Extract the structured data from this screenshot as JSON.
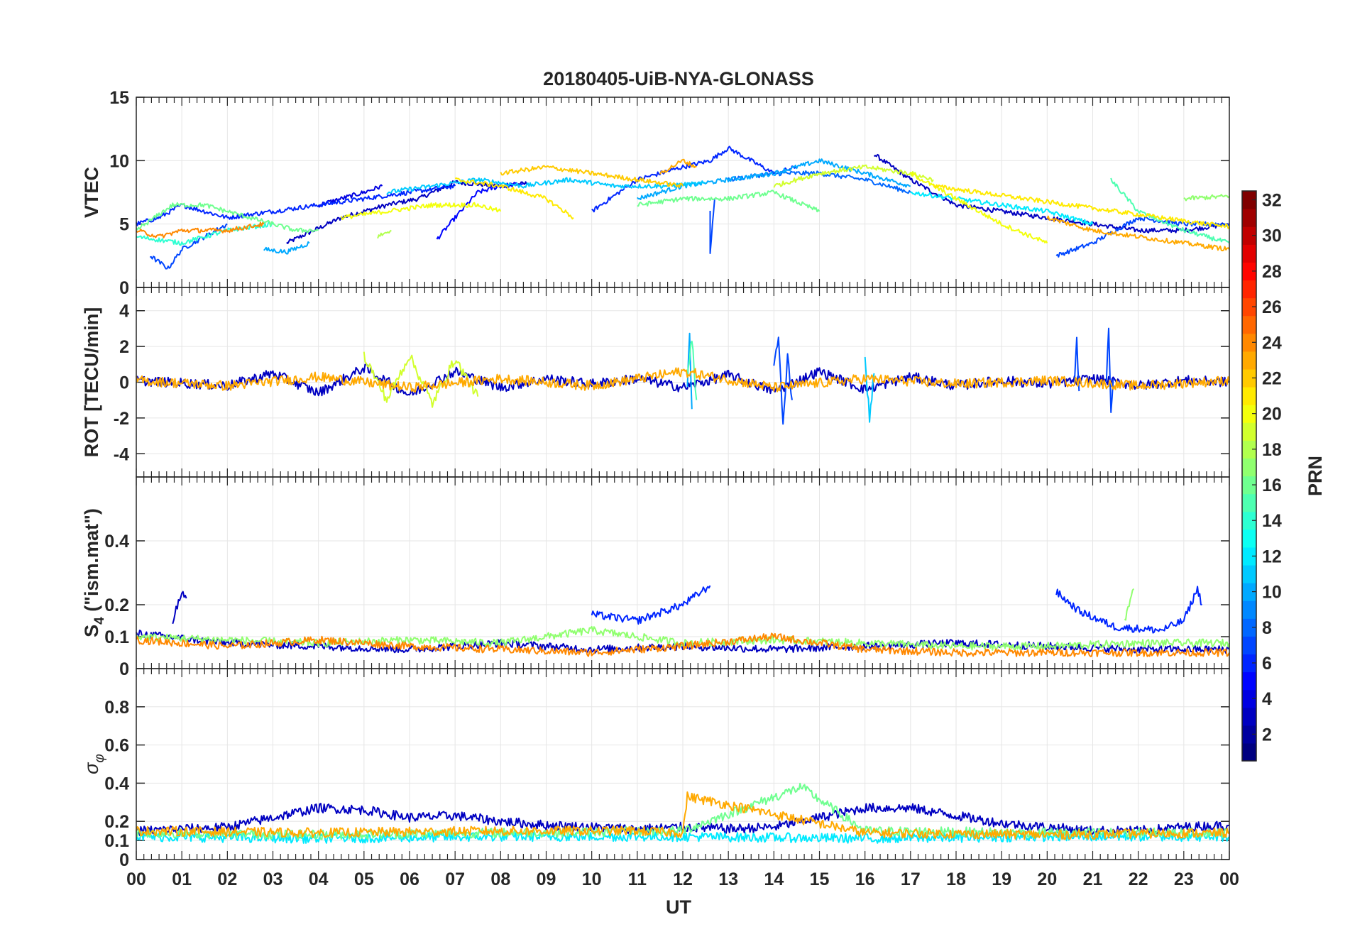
{
  "chart_data": {
    "type": "line",
    "title": "20180405-UiB-NYA-GLONASS",
    "xlabel": "UT",
    "x_unit": "hours UT",
    "xlim": [
      0,
      24
    ],
    "x_tick_labels": [
      "00",
      "01",
      "02",
      "03",
      "04",
      "05",
      "06",
      "07",
      "08",
      "09",
      "10",
      "11",
      "12",
      "13",
      "14",
      "15",
      "16",
      "17",
      "18",
      "19",
      "20",
      "21",
      "22",
      "23",
      "00"
    ],
    "grid": true,
    "colorbar": {
      "label": "PRN",
      "colormap": "jet",
      "range": [
        1,
        32
      ],
      "levels": 32,
      "tick_labels": [
        "2",
        "4",
        "6",
        "8",
        "10",
        "12",
        "14",
        "16",
        "18",
        "20",
        "22",
        "24",
        "26",
        "28",
        "30",
        "32"
      ]
    },
    "panels": [
      {
        "ylabel": "VTEC",
        "ylim": [
          0,
          15
        ],
        "y_tick_labels": [
          "0",
          "5",
          "10",
          "15"
        ],
        "series": [
          {
            "prn": 3,
            "x": [
              3.3,
              4.5,
              5.5,
              6.2,
              7.0,
              8.0,
              8.6
            ],
            "y": [
              3.5,
              5.5,
              6.5,
              7.0,
              8.3,
              8.0,
              8.2
            ]
          },
          {
            "prn": 3,
            "x": [
              16.2,
              17.0,
              18.0,
              19.0,
              20.0,
              21.0,
              22.0,
              23.0,
              24.0
            ],
            "y": [
              10.5,
              8.5,
              6.5,
              6.0,
              5.5,
              5.0,
              4.5,
              4.5,
              5.0
            ]
          },
          {
            "prn": 4,
            "x": [
              4.0,
              5.0,
              5.4
            ],
            "y": [
              6.5,
              7.5,
              8.0
            ]
          },
          {
            "prn": 5,
            "x": [
              6.6,
              7.0,
              7.5,
              8.0,
              8.5
            ],
            "y": [
              3.8,
              5.5,
              7.5,
              8.0,
              8.2
            ]
          },
          {
            "prn": 6,
            "x": [
              0.0,
              0.5,
              1.0,
              2.0,
              3.0,
              4.0,
              5.0,
              6.0,
              7.0
            ],
            "y": [
              5.0,
              5.5,
              6.5,
              5.5,
              6.0,
              6.5,
              7.0,
              7.5,
              8.0
            ]
          },
          {
            "prn": 6,
            "x": [
              10.0,
              11.0,
              12.0,
              12.6,
              13.0,
              14.0,
              14.5
            ],
            "y": [
              6.0,
              8.5,
              9.5,
              10.0,
              11.0,
              9.0,
              9.5
            ]
          },
          {
            "prn": 7,
            "x": [
              0.3,
              0.7,
              1.0,
              2.0
            ],
            "y": [
              2.5,
              1.5,
              3.0,
              5.0
            ]
          },
          {
            "prn": 7,
            "x": [
              20.2,
              21.0,
              22.0,
              23.0,
              24.0
            ],
            "y": [
              2.5,
              3.5,
              5.5,
              5.0,
              5.0
            ]
          },
          {
            "prn": 7,
            "x": [
              12.6,
              12.6,
              12.7
            ],
            "y": [
              6.0,
              2.8,
              7.0
            ]
          },
          {
            "prn": 8,
            "x": [
              13.0,
              14.0,
              15.0,
              16.0,
              17.0
            ],
            "y": [
              8.5,
              9.0,
              9.0,
              8.5,
              7.5
            ]
          },
          {
            "prn": 10,
            "x": [
              2.8,
              3.3,
              3.8
            ],
            "y": [
              3.0,
              2.8,
              3.5
            ]
          },
          {
            "prn": 10,
            "x": [
              11.0,
              12.0,
              13.0,
              14.0,
              15.0,
              16.0,
              17.0
            ],
            "y": [
              7.0,
              8.0,
              8.5,
              9.0,
              10.0,
              9.0,
              8.0
            ]
          },
          {
            "prn": 11,
            "x": [
              5.5,
              6.5,
              7.5,
              8.5,
              9.5,
              10.5,
              11.5,
              12.5
            ],
            "y": [
              7.5,
              8.0,
              8.5,
              8.0,
              8.5,
              8.0,
              8.0,
              8.2
            ]
          },
          {
            "prn": 12,
            "x": [
              17.0,
              18.0,
              19.0,
              20.0,
              21.0
            ],
            "y": [
              7.5,
              7.0,
              6.5,
              6.0,
              5.0
            ]
          },
          {
            "prn": 14,
            "x": [
              0.0,
              1.0,
              2.0,
              3.0
            ],
            "y": [
              4.0,
              3.5,
              4.5,
              5.0
            ]
          },
          {
            "prn": 15,
            "x": [
              21.4,
              22.0,
              23.0,
              24.0
            ],
            "y": [
              8.5,
              6.0,
              4.5,
              3.5
            ]
          },
          {
            "prn": 16,
            "x": [
              0.0,
              0.8,
              1.5,
              2.5,
              3.5,
              4.0
            ],
            "y": [
              4.5,
              6.5,
              6.5,
              5.5,
              4.5,
              4.5
            ]
          },
          {
            "prn": 16,
            "x": [
              11.0,
              12.0,
              13.0,
              14.0,
              15.0
            ],
            "y": [
              6.5,
              7.0,
              7.0,
              7.5,
              6.0
            ]
          },
          {
            "prn": 17,
            "x": [
              23.0,
              24.0
            ],
            "y": [
              7.0,
              7.2
            ]
          },
          {
            "prn": 18,
            "x": [
              5.3,
              5.6
            ],
            "y": [
              4.0,
              4.5
            ]
          },
          {
            "prn": 19,
            "x": [
              14.0,
              15.0,
              16.0,
              17.0,
              17.5
            ],
            "y": [
              8.0,
              9.0,
              9.5,
              9.0,
              8.5
            ]
          },
          {
            "prn": 20,
            "x": [
              4.5,
              5.5,
              6.5,
              7.5,
              8.0
            ],
            "y": [
              5.5,
              6.0,
              6.5,
              6.5,
              6.0
            ]
          },
          {
            "prn": 20,
            "x": [
              17.0,
              18.0,
              19.0,
              20.0
            ],
            "y": [
              9.0,
              7.0,
              5.0,
              3.5
            ]
          },
          {
            "prn": 21,
            "x": [
              7.0,
              8.0,
              9.0,
              9.6
            ],
            "y": [
              8.5,
              8.0,
              7.0,
              5.5
            ]
          },
          {
            "prn": 21,
            "x": [
              17.5,
              18.5,
              19.5,
              20.5,
              21.5,
              22.5,
              23.5,
              24.0
            ],
            "y": [
              8.0,
              7.5,
              7.0,
              6.5,
              6.0,
              5.5,
              5.0,
              4.8
            ]
          },
          {
            "prn": 22,
            "x": [
              8.0,
              9.0,
              10.0,
              11.0,
              12.0
            ],
            "y": [
              9.0,
              9.5,
              9.0,
              8.5,
              8.0
            ]
          },
          {
            "prn": 23,
            "x": [
              11.5,
              12.0,
              12.3
            ],
            "y": [
              9.0,
              10.0,
              9.5
            ]
          },
          {
            "prn": 23,
            "x": [
              20.0,
              21.0,
              22.0,
              23.0,
              24.0
            ],
            "y": [
              5.5,
              4.5,
              4.0,
              3.5,
              3.0
            ]
          },
          {
            "prn": 24,
            "x": [
              0.0,
              0.5,
              1.0,
              2.0,
              2.8
            ],
            "y": [
              4.5,
              4.0,
              4.5,
              4.5,
              5.0
            ]
          }
        ]
      },
      {
        "ylabel": "ROT [TECU/min]",
        "ylim": [
          -5.3,
          5.3
        ],
        "y_tick_labels": [
          "-4",
          "-2",
          "0",
          "2",
          "4"
        ],
        "series": [
          {
            "prn": 3,
            "x": [
              0,
              2,
              3,
              4,
              5,
              6,
              7,
              8,
              9,
              10,
              11,
              12,
              13,
              14,
              15,
              16,
              17,
              18,
              19,
              20,
              21,
              22,
              23,
              24
            ],
            "y": [
              0.1,
              -0.2,
              0.5,
              -0.6,
              0.8,
              -0.7,
              0.6,
              -0.3,
              0.2,
              -0.1,
              0.2,
              -0.3,
              0.4,
              -0.5,
              0.6,
              -0.4,
              0.3,
              -0.2,
              0.1,
              -0.1,
              0.2,
              -0.2,
              0.1,
              0.0
            ]
          },
          {
            "prn": 7,
            "x": [
              14.0,
              14.1,
              14.2,
              14.3,
              14.4
            ],
            "y": [
              1.0,
              2.5,
              -2.5,
              1.5,
              -1.0
            ]
          },
          {
            "prn": 7,
            "x": [
              20.6,
              20.65,
              20.7
            ],
            "y": [
              0.0,
              2.6,
              -0.5
            ]
          },
          {
            "prn": 7,
            "x": [
              21.3,
              21.35,
              21.4,
              21.45
            ],
            "y": [
              0.0,
              2.8,
              -1.5,
              0.2
            ]
          },
          {
            "prn": 10,
            "x": [
              12.1,
              12.15,
              12.2
            ],
            "y": [
              0.0,
              2.5,
              -1.5
            ]
          },
          {
            "prn": 11,
            "x": [
              16.0,
              16.1,
              16.2
            ],
            "y": [
              1.2,
              -2.0,
              0.5
            ]
          },
          {
            "prn": 15,
            "x": [
              12.1,
              12.2,
              12.3
            ],
            "y": [
              0.2,
              2.5,
              -1.0
            ]
          },
          {
            "prn": 19,
            "x": [
              5.0,
              5.5,
              6.0,
              6.5,
              7.0,
              7.5
            ],
            "y": [
              1.5,
              -1.0,
              1.5,
              -1.2,
              1.3,
              -0.8
            ]
          },
          {
            "prn": 23,
            "x": [
              0,
              2,
              4,
              6,
              8,
              10,
              12,
              14,
              16,
              18,
              20,
              22,
              24
            ],
            "y": [
              0.1,
              -0.2,
              0.3,
              -0.3,
              0.2,
              -0.2,
              0.6,
              -0.3,
              0.2,
              -0.1,
              0.1,
              -0.2,
              0.1
            ]
          }
        ]
      },
      {
        "ylabel": "S4 (\"ism.mat\")",
        "ylabel_main": "S",
        "ylabel_sub": "4",
        "ylabel_rest": " (\"ism.mat\")",
        "ylim": [
          0,
          0.6
        ],
        "y_tick_labels": [
          "0",
          "0.1",
          "0.2",
          "0.4"
        ],
        "series": [
          {
            "prn": 3,
            "x": [
              0.8,
              1.0,
              1.1
            ],
            "y": [
              0.15,
              0.24,
              0.22
            ]
          },
          {
            "prn": 6,
            "x": [
              10.0,
              11.0,
              12.0,
              12.6
            ],
            "y": [
              0.17,
              0.15,
              0.2,
              0.26
            ]
          },
          {
            "prn": 6,
            "x": [
              20.2,
              20.7,
              21.5,
              22.5,
              23.0,
              23.3,
              23.4
            ],
            "y": [
              0.24,
              0.18,
              0.13,
              0.12,
              0.15,
              0.25,
              0.2
            ]
          },
          {
            "prn": 17,
            "x": [
              21.7,
              21.9
            ],
            "y": [
              0.15,
              0.25
            ]
          },
          {
            "prn": 3,
            "x": [
              0,
              2,
              4,
              6,
              8,
              10,
              12,
              14,
              16,
              18,
              20,
              22,
              24
            ],
            "y": [
              0.11,
              0.08,
              0.07,
              0.06,
              0.08,
              0.06,
              0.07,
              0.06,
              0.07,
              0.08,
              0.07,
              0.06,
              0.06
            ]
          },
          {
            "prn": 17,
            "x": [
              0,
              2,
              4,
              6,
              8,
              10,
              12,
              14,
              16,
              18,
              20,
              22,
              24
            ],
            "y": [
              0.1,
              0.09,
              0.08,
              0.09,
              0.08,
              0.12,
              0.08,
              0.09,
              0.08,
              0.07,
              0.07,
              0.08,
              0.08
            ]
          },
          {
            "prn": 24,
            "x": [
              0,
              2,
              4,
              6,
              8,
              10,
              12,
              14,
              16,
              18,
              20,
              22,
              24
            ],
            "y": [
              0.09,
              0.07,
              0.09,
              0.07,
              0.06,
              0.05,
              0.07,
              0.1,
              0.06,
              0.05,
              0.05,
              0.05,
              0.05
            ]
          }
        ]
      },
      {
        "ylabel": "σφ",
        "ylabel_main": "σ",
        "ylabel_sub": "φ",
        "ylim": [
          0,
          1
        ],
        "y_tick_labels": [
          "0",
          "0.1",
          "0.2",
          "0.4",
          "0.6",
          "0.8"
        ],
        "series": [
          {
            "prn": 3,
            "x": [
              0,
              2,
              3,
              4,
              5,
              6,
              7,
              8,
              9,
              10,
              11,
              12,
              13,
              14,
              15,
              16,
              17,
              18,
              19,
              20,
              21,
              22,
              23,
              24
            ],
            "y": [
              0.15,
              0.17,
              0.22,
              0.27,
              0.26,
              0.22,
              0.23,
              0.2,
              0.18,
              0.17,
              0.16,
              0.17,
              0.16,
              0.17,
              0.22,
              0.27,
              0.27,
              0.23,
              0.19,
              0.17,
              0.15,
              0.15,
              0.17,
              0.18
            ]
          },
          {
            "prn": 12,
            "x": [
              0,
              4,
              8,
              12,
              16,
              20,
              24
            ],
            "y": [
              0.12,
              0.11,
              0.12,
              0.12,
              0.11,
              0.12,
              0.12
            ]
          },
          {
            "prn": 16,
            "x": [
              0,
              4,
              8,
              12,
              14.6,
              16,
              20,
              24
            ],
            "y": [
              0.14,
              0.13,
              0.14,
              0.15,
              0.38,
              0.15,
              0.14,
              0.14
            ]
          },
          {
            "prn": 23,
            "x": [
              0,
              4,
              8,
              10.9,
              12,
              12.1,
              16,
              20,
              24
            ],
            "y": [
              0.15,
              0.14,
              0.15,
              0.15,
              0.14,
              0.33,
              0.14,
              0.13,
              0.14
            ]
          }
        ]
      }
    ]
  }
}
